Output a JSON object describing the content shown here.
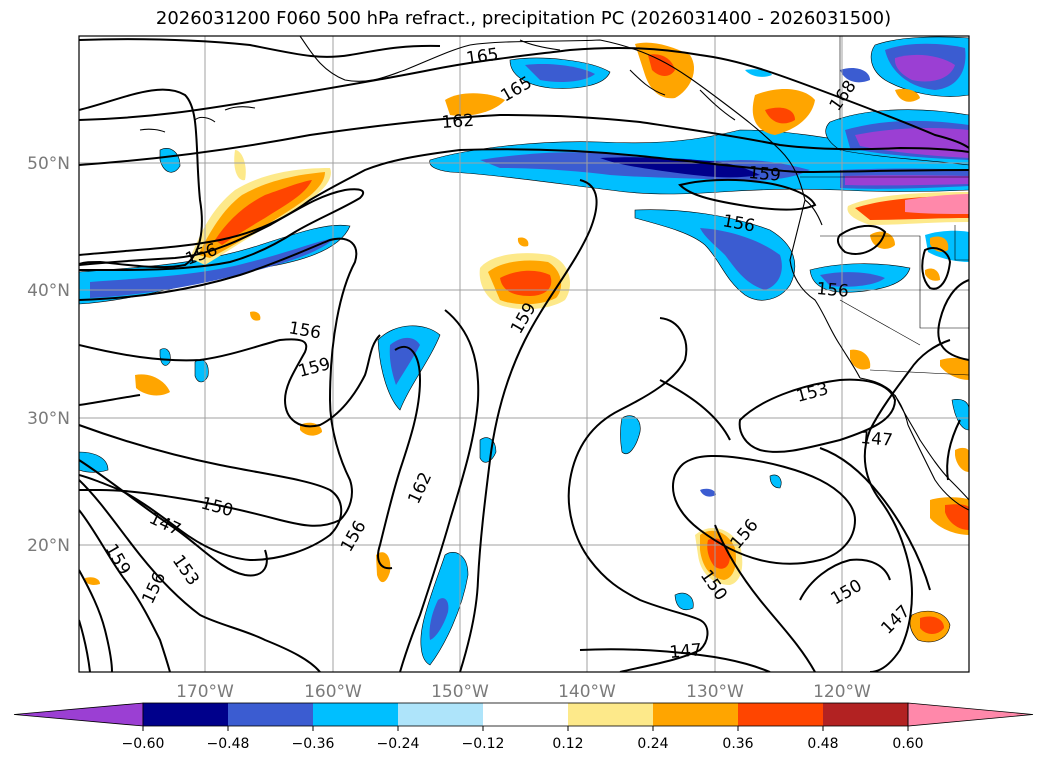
{
  "title": "2026031200 F060 500 hPa refract., precipitation PC (2026031400 - 2026031500)",
  "lat_labels": [
    "50°N",
    "40°N",
    "30°N",
    "20°N"
  ],
  "lon_labels": [
    "170°W",
    "160°W",
    "150°W",
    "140°W",
    "130°W",
    "120°W"
  ],
  "colorbar": {
    "colors": [
      "#9b3fd3",
      "#00008b",
      "#3b5cd1",
      "#00bfff",
      "#aee4fa",
      "#ffffff",
      "#fde98a",
      "#ffa500",
      "#ff4500",
      "#b22222",
      "#ff88aa"
    ],
    "labels": [
      "−0.60",
      "−0.48",
      "−0.36",
      "−0.24",
      "−0.12",
      "0.12",
      "0.24",
      "0.36",
      "0.48",
      "0.60"
    ]
  },
  "contour_labels": [
    "165",
    "165",
    "168",
    "162",
    "159",
    "156",
    "156",
    "156",
    "156",
    "159",
    "159",
    "153",
    "147",
    "162",
    "150",
    "147",
    "159",
    "156",
    "153",
    "156",
    "150",
    "156",
    "150",
    "147",
    "147"
  ]
}
